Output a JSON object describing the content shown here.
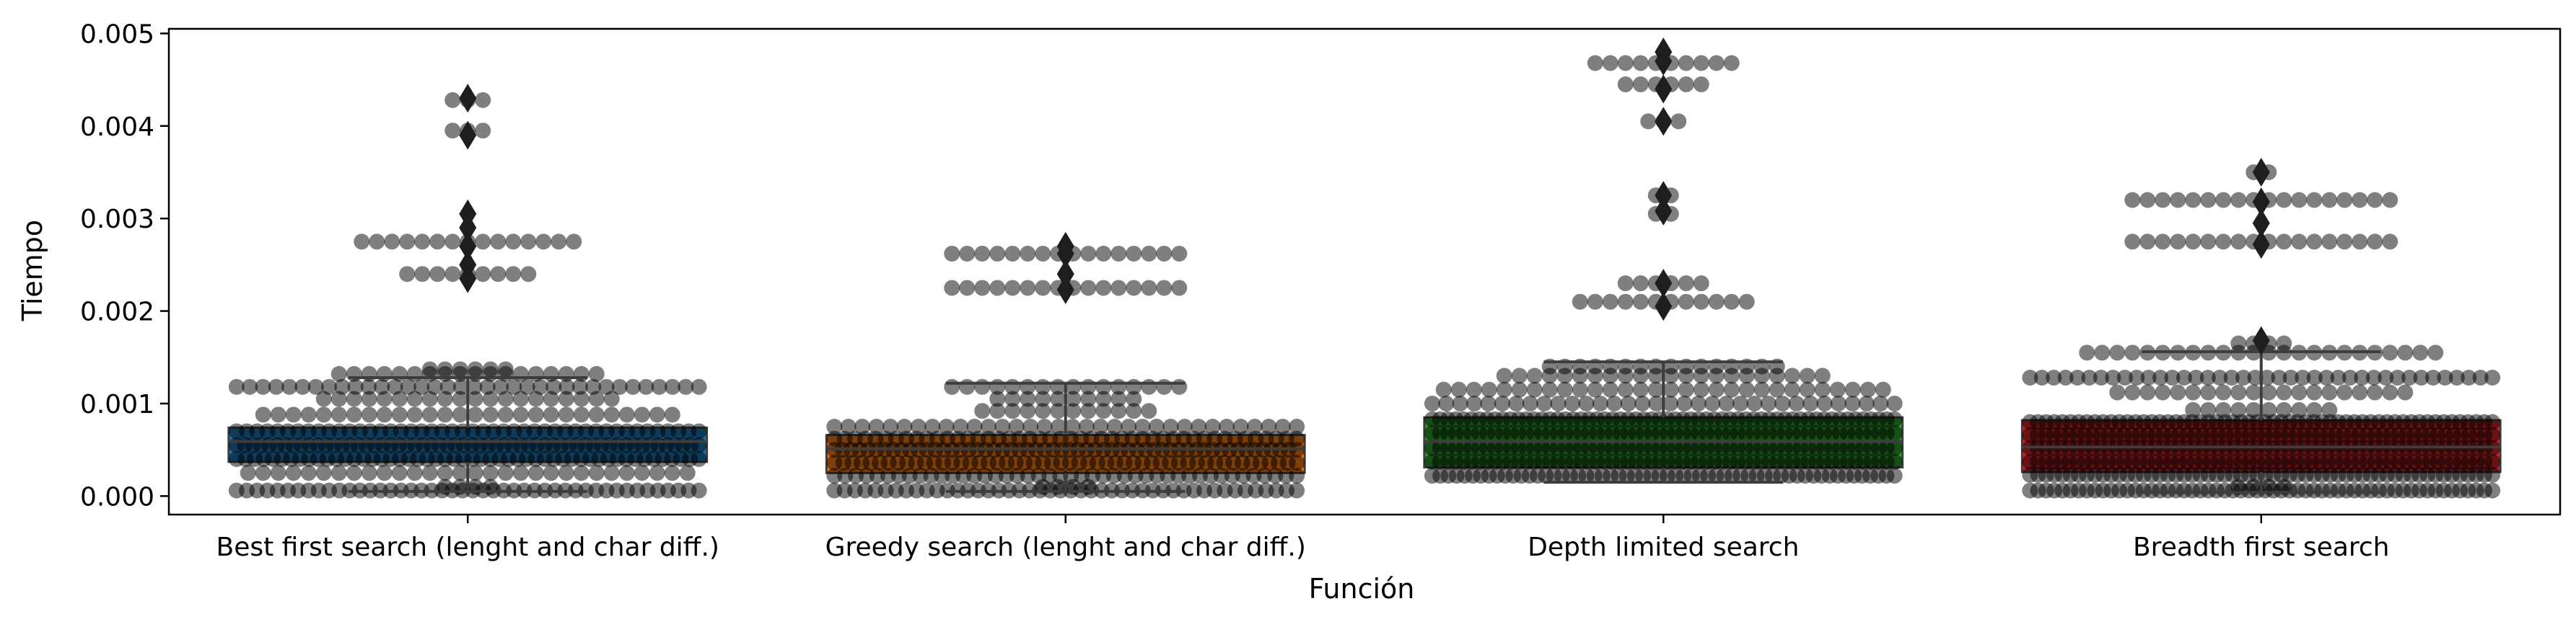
{
  "chart_data": {
    "type": "box",
    "overlay": "swarm",
    "xlabel": "Función",
    "ylabel": "Tiempo",
    "ylim": [
      -0.0002,
      0.00505
    ],
    "yticks": [
      0.0,
      0.001,
      0.002,
      0.003,
      0.004,
      0.005
    ],
    "ytick_labels": [
      "0.000",
      "0.001",
      "0.002",
      "0.003",
      "0.004",
      "0.005"
    ],
    "categories": [
      "Best first search (lenght and char diff.)",
      "Greedy search (lenght and char diff.)",
      "Depth limited search",
      "Breadth first search"
    ],
    "colors": [
      "#1f77b4",
      "#ff7f0e",
      "#2ca02c",
      "#d62728"
    ],
    "boxes": [
      {
        "q1": 0.00037,
        "median": 0.00059,
        "q3": 0.00074,
        "whisker_low": 5e-05,
        "whisker_high": 0.00128,
        "outliers": [
          0.00235,
          0.0025,
          0.0027,
          0.0029,
          0.00305,
          0.0039,
          0.0043
        ]
      },
      {
        "q1": 0.00025,
        "median": 0.00051,
        "q3": 0.00066,
        "whisker_low": 5e-05,
        "whisker_high": 0.00122,
        "outliers": [
          0.00223,
          0.0024,
          0.00262,
          0.0027
        ]
      },
      {
        "q1": 0.00031,
        "median": 0.00059,
        "q3": 0.00085,
        "whisker_low": 0.00015,
        "whisker_high": 0.00145,
        "outliers": [
          0.00205,
          0.0023,
          0.00308,
          0.00325,
          0.00405,
          0.0044,
          0.0047,
          0.0048
        ]
      },
      {
        "q1": 0.00026,
        "median": 0.00053,
        "q3": 0.00082,
        "whisker_low": 4e-05,
        "whisker_high": 0.00156,
        "outliers": [
          0.00168,
          0.00272,
          0.00295,
          0.00318,
          0.0035
        ]
      }
    ],
    "points": [
      [
        {
          "y": 6e-05,
          "n": 46
        },
        {
          "y": 0.0001,
          "n": 4
        },
        {
          "y": 0.00025,
          "n": 30
        },
        {
          "y": 0.0004,
          "n": 52
        },
        {
          "y": 0.00055,
          "n": 58
        },
        {
          "y": 0.0007,
          "n": 46
        },
        {
          "y": 0.00088,
          "n": 28
        },
        {
          "y": 0.00105,
          "n": 20
        },
        {
          "y": 0.00118,
          "n": 36
        },
        {
          "y": 0.00132,
          "n": 18
        },
        {
          "y": 0.00137,
          "n": 6
        },
        {
          "y": 0.0024,
          "n": 9
        },
        {
          "y": 0.00275,
          "n": 15
        },
        {
          "y": 0.00395,
          "n": 3
        },
        {
          "y": 0.00428,
          "n": 3
        }
      ],
      [
        {
          "y": 6e-05,
          "n": 46
        },
        {
          "y": 0.0001,
          "n": 4
        },
        {
          "y": 0.00022,
          "n": 44
        },
        {
          "y": 0.00036,
          "n": 52
        },
        {
          "y": 0.0005,
          "n": 56
        },
        {
          "y": 0.00062,
          "n": 46
        },
        {
          "y": 0.00075,
          "n": 34
        },
        {
          "y": 0.00092,
          "n": 12
        },
        {
          "y": 0.00105,
          "n": 10
        },
        {
          "y": 0.00118,
          "n": 16
        },
        {
          "y": 0.00225,
          "n": 16
        },
        {
          "y": 0.00262,
          "n": 16
        }
      ],
      [
        {
          "y": 0.00022,
          "n": 58
        },
        {
          "y": 0.00037,
          "n": 60
        },
        {
          "y": 0.00052,
          "n": 60
        },
        {
          "y": 0.00068,
          "n": 60
        },
        {
          "y": 0.00083,
          "n": 60
        },
        {
          "y": 0.001,
          "n": 34
        },
        {
          "y": 0.00115,
          "n": 30
        },
        {
          "y": 0.0013,
          "n": 22
        },
        {
          "y": 0.0014,
          "n": 16
        },
        {
          "y": 0.0021,
          "n": 12
        },
        {
          "y": 0.0023,
          "n": 6
        },
        {
          "y": 0.00305,
          "n": 2
        },
        {
          "y": 0.00325,
          "n": 2
        },
        {
          "y": 0.00405,
          "n": 3
        },
        {
          "y": 0.00445,
          "n": 6
        },
        {
          "y": 0.00468,
          "n": 10
        }
      ],
      [
        {
          "y": 6e-05,
          "n": 58
        },
        {
          "y": 0.0001,
          "n": 4
        },
        {
          "y": 0.00023,
          "n": 58
        },
        {
          "y": 0.00037,
          "n": 60
        },
        {
          "y": 0.00052,
          "n": 60
        },
        {
          "y": 0.00066,
          "n": 60
        },
        {
          "y": 0.0008,
          "n": 58
        },
        {
          "y": 0.00093,
          "n": 10
        },
        {
          "y": 0.00112,
          "n": 20
        },
        {
          "y": 0.00128,
          "n": 40
        },
        {
          "y": 0.00155,
          "n": 24
        },
        {
          "y": 0.00165,
          "n": 4
        },
        {
          "y": 0.00275,
          "n": 18
        },
        {
          "y": 0.0032,
          "n": 18
        },
        {
          "y": 0.0035,
          "n": 2
        }
      ]
    ]
  }
}
